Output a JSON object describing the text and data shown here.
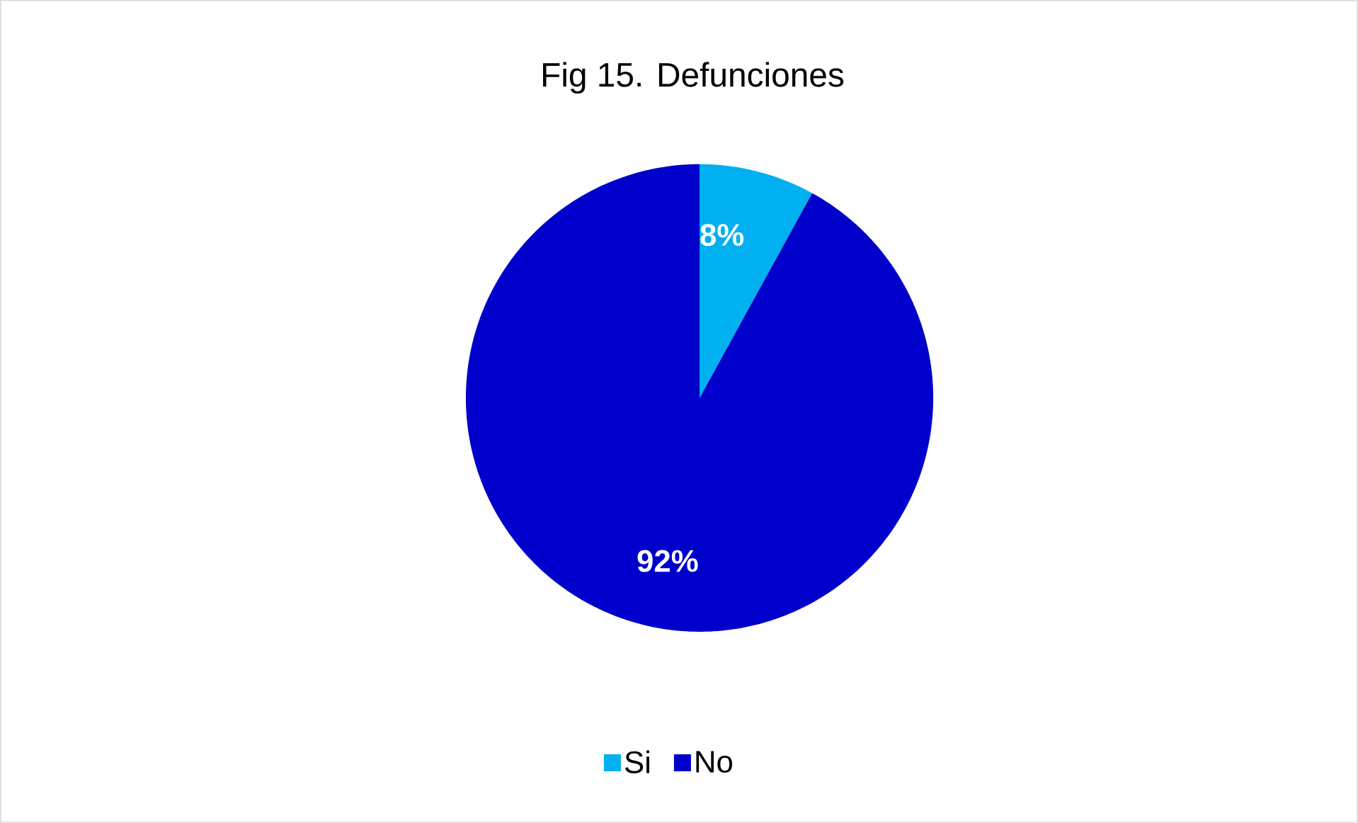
{
  "chart_data": {
    "type": "pie",
    "title": "Fig 15. Defunciones",
    "categories": [
      "Si",
      "No"
    ],
    "values": [
      8,
      92
    ],
    "value_labels": [
      "8%",
      "92%"
    ],
    "colors": [
      "#00b0f0",
      "#0000cc"
    ],
    "legend": "bottom"
  }
}
